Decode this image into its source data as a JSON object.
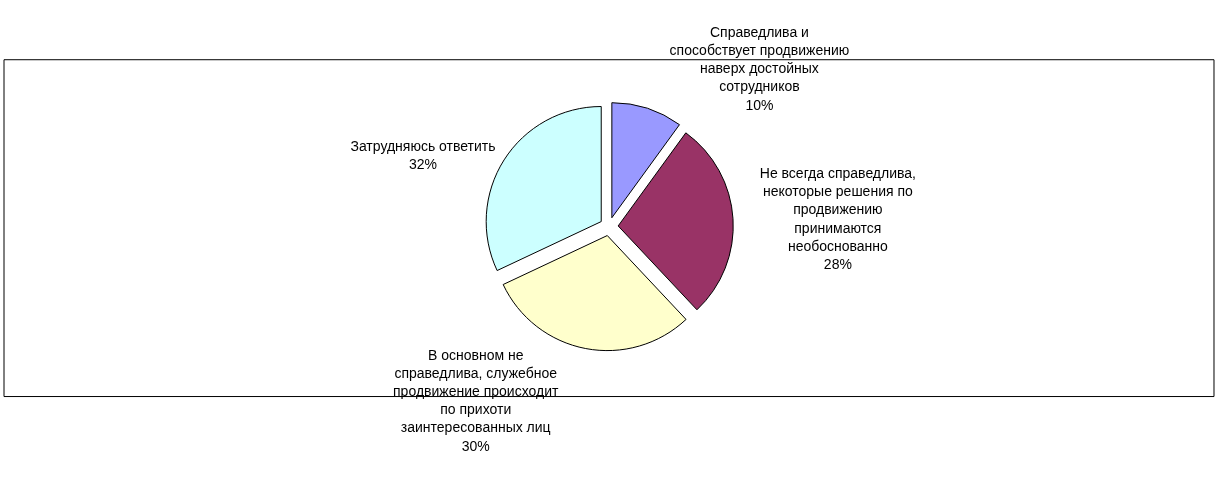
{
  "chart_data": {
    "type": "pie",
    "categories": [
      "Справедлива и\nспособствует продвижению\nнаверх достойных\nсотрудников",
      "Не всегда справедлива,\nнекоторые решения по\nпродвижению\nпринимаются\nнеобоснованно",
      "В основном не\nсправедлива, служебное\nпродвижение происходит\nпо прихоти\nзаинтересованных лиц",
      "Затрудняюсь ответить"
    ],
    "values": [
      10,
      28,
      30,
      32
    ],
    "value_labels": [
      "10%",
      "28%",
      "30%",
      "32%"
    ],
    "colors": [
      "#9999ff",
      "#993366",
      "#ffffcc",
      "#ccffff"
    ],
    "legend": false
  }
}
